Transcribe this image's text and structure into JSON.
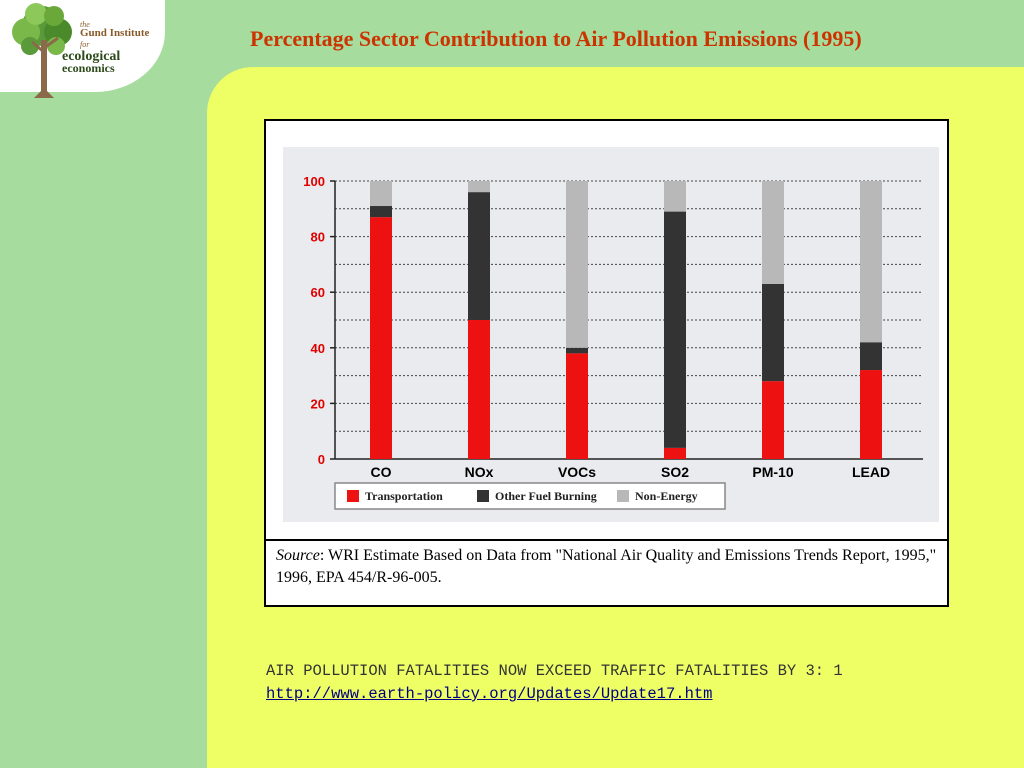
{
  "logo": {
    "line_the": "the",
    "line_gund": "Gund Institute",
    "line_for": "for",
    "line_ecological": "ecological",
    "line_economics": "economics"
  },
  "slide": {
    "title": "Percentage Sector Contribution to Air Pollution Emissions (1995)",
    "note": "AIR POLLUTION FATALITIES NOW EXCEED TRAFFIC FATALITIES BY 3: 1",
    "link": "http://www.earth-policy.org/Updates/Update17.htm"
  },
  "source": {
    "label": "Source",
    "text": ": WRI Estimate Based on Data from \"National Air Quality and Emissions Trends Report, 1995,\" 1996, EPA 454/R-96-005."
  },
  "colors": {
    "background": "#a6dc9d",
    "panel": "#eeff66",
    "title": "#cc3300",
    "chart_bg": "#e9ebee"
  },
  "chart_data": {
    "type": "bar",
    "stacked": true,
    "categories": [
      "CO",
      "NOx",
      "VOCs",
      "SO2",
      "PM-10",
      "LEAD"
    ],
    "series": [
      {
        "name": "Transportation",
        "color": "#ee1111",
        "values": [
          87,
          50,
          38,
          4,
          28,
          32
        ]
      },
      {
        "name": "Other Fuel Burning",
        "color": "#333333",
        "values": [
          4,
          46,
          2,
          85,
          35,
          10
        ]
      },
      {
        "name": "Non-Energy",
        "color": "#b8b8b8",
        "values": [
          9,
          4,
          60,
          11,
          37,
          58
        ]
      }
    ],
    "yticks": [
      "0",
      "20",
      "40",
      "60",
      "80",
      "100"
    ],
    "ylim": [
      0,
      100
    ],
    "grid": true,
    "legend_position": "bottom"
  }
}
